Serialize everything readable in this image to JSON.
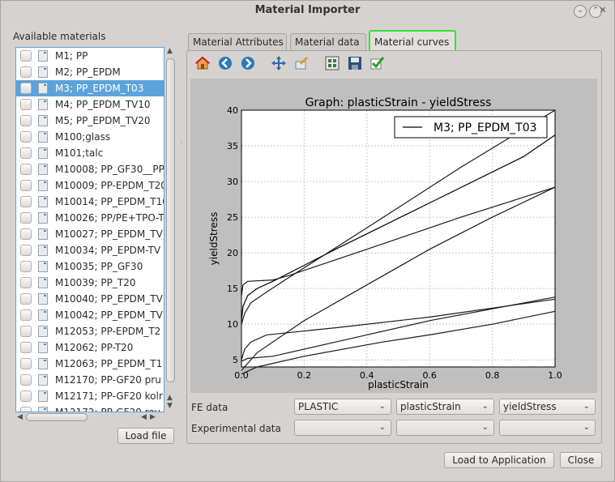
{
  "window": {
    "title": "Material Importer",
    "buttons": [
      "⌄",
      "⌃",
      "✕"
    ]
  },
  "available_label": "Available materials",
  "materials": [
    "M1; PP",
    "M2; PP_EPDM",
    "M3; PP_EPDM_T03",
    "M4; PP_EPDM_TV10",
    "M5; PP_EPDM_TV20",
    "M100;glass",
    "M101;talc",
    "M10008; PP_GF30__PP",
    "M10009; PP-EPDM_T20",
    "M10014; PP_EPDM_T10",
    "M10026; PP/PE+TPO-T",
    "M10027; PP_EPDM_TV",
    "M10034; PP_EPDM-TV",
    "M10035; PP_GF30",
    "M10039; PP_T20",
    "M10040; PP_EPDM_TV",
    "M10042; PP_EPDM_TV",
    "M12053; PP-EPDM_T2",
    "M12062; PP-T20",
    "M12063; PP_EPDM_T1",
    "M12170; PP-GF20 pru",
    "M12171; PP-GF20 kolr",
    "M12172; PP-GF20 rov"
  ],
  "selected_index": 2,
  "load_file_label": "Load file",
  "tabs": [
    "Material Attributes",
    "Material data",
    "Material curves"
  ],
  "active_tab": 2,
  "toolbar_icons": [
    "home-icon",
    "back-icon",
    "forward-icon",
    "pan-icon",
    "zoom-icon",
    "configure-subplots-icon",
    "save-icon",
    "check-icon"
  ],
  "fe_data": {
    "label": "FE data",
    "type_value": "PLASTIC",
    "x_value": "plasticStrain",
    "y_value": "yieldStress"
  },
  "experimental_data": {
    "label": "Experimental data"
  },
  "load_to_app_label": "Load to Application",
  "close_label": "Close",
  "colors": {
    "selection": "#5da3db",
    "active_tab_highlight": "#39e339",
    "plot_background": "#bfbfbf"
  },
  "chart_data": {
    "type": "line",
    "title": "Graph: plasticStrain - yieldStress",
    "xlabel": "plasticStrain",
    "ylabel": "yieldStress",
    "xlim": [
      0.0,
      1.0
    ],
    "ylim": [
      4,
      40
    ],
    "xticks": [
      "0.0",
      "0.2",
      "0.4",
      "0.6",
      "0.8",
      "1.0"
    ],
    "yticks": [
      "5",
      "10",
      "15",
      "20",
      "25",
      "30",
      "35",
      "40"
    ],
    "grid": true,
    "legend": {
      "placement": "top-right",
      "entries": [
        "M3; PP_EPDM_T03"
      ]
    },
    "series": [
      {
        "name": "M3; PP_EPDM_T03",
        "x": [
          0.0,
          0.005,
          0.02,
          0.05,
          0.1,
          0.3,
          0.6,
          0.9,
          1.0
        ],
        "y": [
          10.5,
          12.5,
          14.0,
          15.0,
          16.0,
          20.5,
          27.0,
          33.5,
          36.5
        ]
      },
      {
        "x": [
          0.0,
          0.01,
          0.03,
          0.08,
          0.15,
          0.4,
          0.7,
          1.0
        ],
        "y": [
          10.0,
          11.5,
          13.0,
          14.5,
          16.5,
          23.5,
          32.0,
          40.0
        ]
      },
      {
        "x": [
          0.0,
          0.005,
          0.02,
          0.1,
          0.15,
          0.4,
          0.7,
          1.0
        ],
        "y": [
          14.0,
          15.5,
          16.0,
          16.2,
          16.8,
          20.5,
          25.0,
          29.2
        ]
      },
      {
        "x": [
          0.0,
          0.05,
          0.2,
          0.4,
          0.6,
          0.8,
          1.0
        ],
        "y": [
          3.5,
          6.0,
          10.5,
          15.5,
          20.5,
          25.0,
          29.2
        ]
      },
      {
        "x": [
          0.0,
          0.01,
          0.03,
          0.08,
          0.3,
          0.6,
          1.0
        ],
        "y": [
          5.0,
          6.5,
          7.5,
          8.5,
          9.5,
          11.0,
          13.5
        ]
      },
      {
        "x": [
          0.0,
          0.05,
          0.2,
          0.45,
          0.6,
          0.8,
          1.0
        ],
        "y": [
          3.0,
          4.0,
          5.5,
          7.5,
          8.5,
          10.0,
          11.8
        ]
      },
      {
        "x": [
          0.0,
          0.02,
          0.1,
          0.3,
          0.6,
          1.0
        ],
        "y": [
          4.8,
          5.2,
          5.5,
          7.5,
          10.5,
          13.8
        ]
      }
    ]
  }
}
